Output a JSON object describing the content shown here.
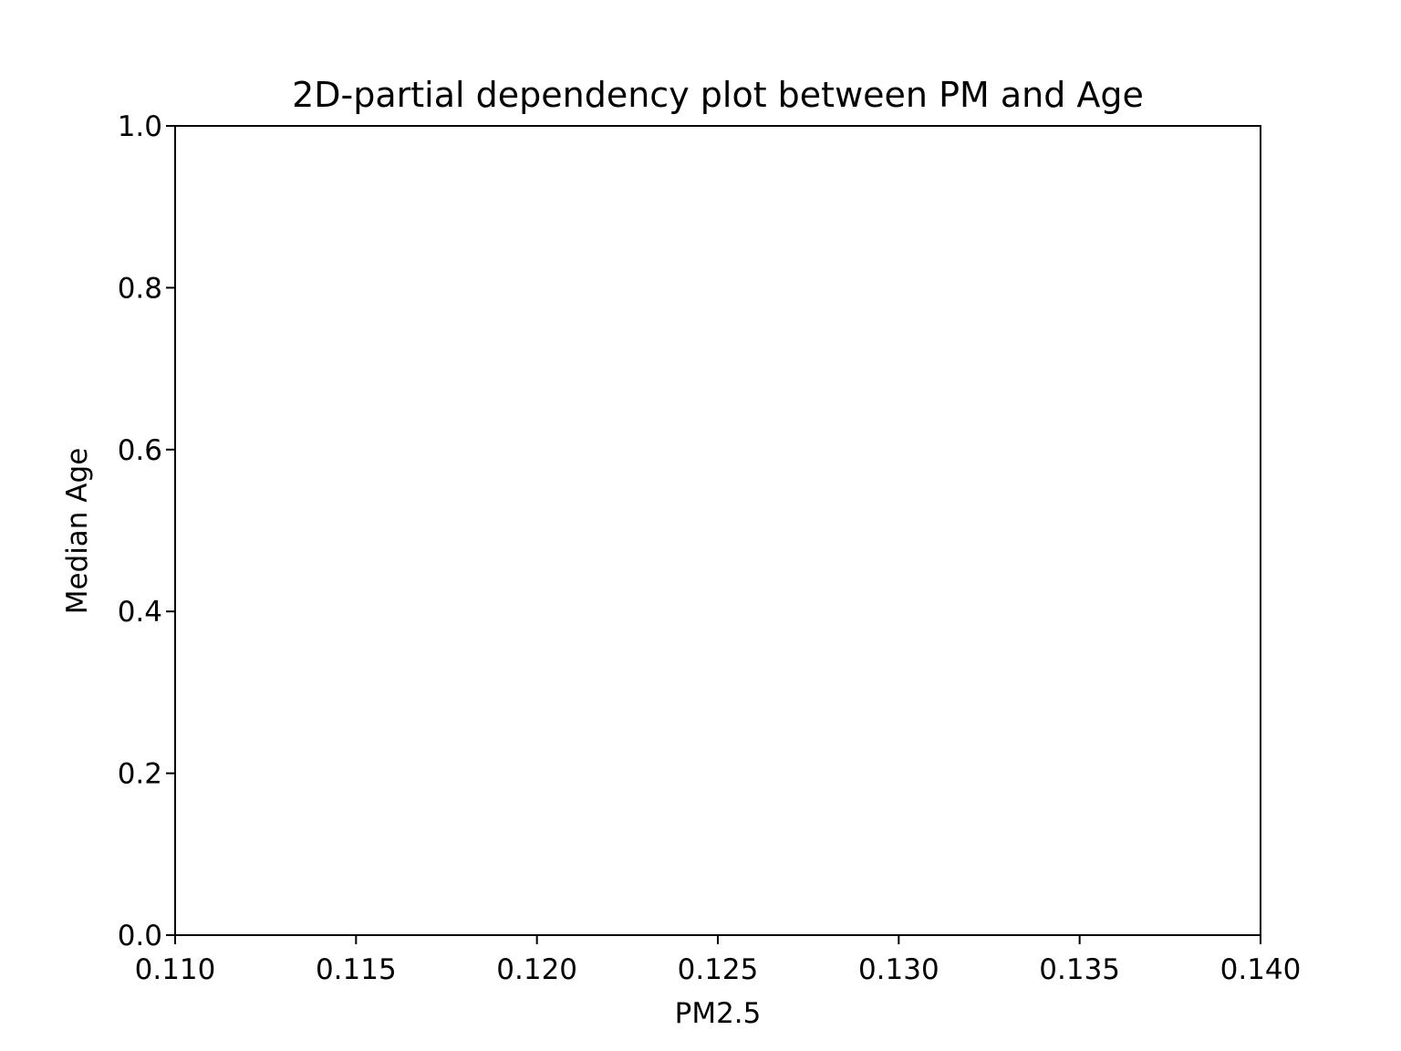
{
  "chart_data": {
    "type": "heatmap",
    "title": "2D-partial dependency plot between PM and Age",
    "xlabel": "PM2.5",
    "ylabel": "Median Age",
    "xlim": [
      0.11,
      0.14
    ],
    "ylim": [
      0.0,
      1.0
    ],
    "x_ticks": [
      0.11,
      0.115,
      0.12,
      0.125,
      0.13,
      0.135,
      0.14
    ],
    "x_tick_labels": [
      "0.110",
      "0.115",
      "0.120",
      "0.125",
      "0.130",
      "0.135",
      "0.140"
    ],
    "y_ticks": [
      0.0,
      0.2,
      0.4,
      0.6,
      0.8,
      1.0
    ],
    "y_tick_labels": [
      "0.0",
      "0.2",
      "0.4",
      "0.6",
      "0.8",
      "1.0"
    ],
    "grid": false,
    "series": []
  }
}
